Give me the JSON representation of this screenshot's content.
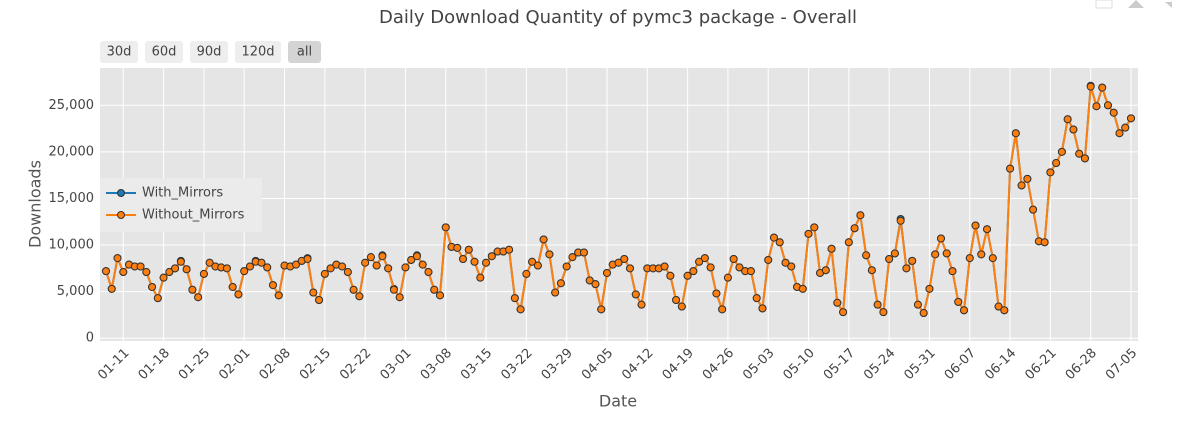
{
  "chart_data": {
    "type": "line",
    "title": "Daily Download Quantity of pymc3 package - Overall",
    "x_label": "Date",
    "y_label": "Downloads",
    "range_buttons": [
      "30d",
      "60d",
      "90d",
      "120d",
      "all"
    ],
    "categories": [
      "01-08",
      "01-09",
      "01-10",
      "01-11",
      "01-12",
      "01-13",
      "01-14",
      "01-15",
      "01-16",
      "01-17",
      "01-18",
      "01-19",
      "01-20",
      "01-21",
      "01-22",
      "01-23",
      "01-24",
      "01-25",
      "01-26",
      "01-27",
      "01-28",
      "01-29",
      "01-30",
      "01-31",
      "02-01",
      "02-02",
      "02-03",
      "02-04",
      "02-05",
      "02-06",
      "02-07",
      "02-08",
      "02-09",
      "02-10",
      "02-11",
      "02-12",
      "02-13",
      "02-14",
      "02-15",
      "02-16",
      "02-17",
      "02-18",
      "02-19",
      "02-20",
      "02-21",
      "02-22",
      "02-23",
      "02-24",
      "02-25",
      "02-26",
      "02-27",
      "02-28",
      "03-01",
      "03-02",
      "03-03",
      "03-04",
      "03-05",
      "03-06",
      "03-07",
      "03-08",
      "03-09",
      "03-10",
      "03-11",
      "03-12",
      "03-13",
      "03-14",
      "03-15",
      "03-16",
      "03-17",
      "03-18",
      "03-19",
      "03-20",
      "03-21",
      "03-22",
      "03-23",
      "03-24",
      "03-25",
      "03-26",
      "03-27",
      "03-28",
      "03-29",
      "03-30",
      "03-31",
      "04-01",
      "04-02",
      "04-03",
      "04-04",
      "04-05",
      "04-06",
      "04-07",
      "04-08",
      "04-09",
      "04-10",
      "04-11",
      "04-12",
      "04-13",
      "04-14",
      "04-15",
      "04-16",
      "04-17",
      "04-18",
      "04-19",
      "04-20",
      "04-21",
      "04-22",
      "04-23",
      "04-24",
      "04-25",
      "04-26",
      "04-27",
      "04-28",
      "04-29",
      "04-30",
      "05-01",
      "05-02",
      "05-03",
      "05-04",
      "05-05",
      "05-06",
      "05-07",
      "05-08",
      "05-09",
      "05-10",
      "05-11",
      "05-12",
      "05-13",
      "05-14",
      "05-15",
      "05-16",
      "05-17",
      "05-18",
      "05-19",
      "05-20",
      "05-21",
      "05-22",
      "05-23",
      "05-24",
      "05-25",
      "05-26",
      "05-27",
      "05-28",
      "05-29",
      "05-30",
      "05-31",
      "06-01",
      "06-02",
      "06-03",
      "06-04",
      "06-05",
      "06-06",
      "06-07",
      "06-08",
      "06-09",
      "06-10",
      "06-11",
      "06-12",
      "06-13",
      "06-14",
      "06-15",
      "06-16",
      "06-17",
      "06-18",
      "06-19",
      "06-20",
      "06-21",
      "06-22",
      "06-23",
      "06-24",
      "06-25",
      "06-26",
      "06-27",
      "06-28",
      "06-29",
      "06-30",
      "07-01",
      "07-02",
      "07-03",
      "07-04",
      "07-05"
    ],
    "xticks": [
      "01-11",
      "01-18",
      "01-25",
      "02-01",
      "02-08",
      "02-15",
      "02-22",
      "03-01",
      "03-08",
      "03-15",
      "03-22",
      "03-29",
      "04-05",
      "04-12",
      "04-19",
      "04-26",
      "05-03",
      "05-10",
      "05-17",
      "05-24",
      "05-31",
      "06-07",
      "06-14",
      "06-21",
      "06-28",
      "07-05"
    ],
    "ylim": [
      -300,
      29000
    ],
    "yticks": [
      0,
      {
        "value": 5000,
        "label": "5,000"
      },
      {
        "value": 10000,
        "label": "10,000"
      },
      {
        "value": 15000,
        "label": "15,000"
      },
      {
        "value": 20000,
        "label": "20,000"
      },
      {
        "value": 25000,
        "label": "25,000"
      }
    ],
    "grid": true,
    "legend_position": "left",
    "series": [
      {
        "name": "With_Mirrors",
        "color": "#1f77b4",
        "values": [
          7200,
          5300,
          8600,
          7100,
          7900,
          7700,
          7700,
          7100,
          5500,
          4300,
          6500,
          7100,
          7500,
          8300,
          7400,
          5200,
          4400,
          6900,
          8100,
          7700,
          7600,
          7500,
          5500,
          4700,
          7200,
          7700,
          8300,
          8100,
          7600,
          5700,
          4600,
          7800,
          7700,
          7900,
          8300,
          8600,
          4900,
          4100,
          6900,
          7500,
          7900,
          7700,
          7100,
          5200,
          4500,
          8100,
          8700,
          7800,
          8900,
          7500,
          5300,
          4400,
          7600,
          8400,
          8900,
          7900,
          7100,
          5200,
          4600,
          11900,
          9800,
          9700,
          8500,
          9500,
          8200,
          6500,
          8100,
          8800,
          9300,
          9300,
          9500,
          4300,
          3100,
          6900,
          8200,
          7800,
          10600,
          9000,
          4900,
          5900,
          7700,
          8700,
          9200,
          9200,
          6200,
          5800,
          3100,
          7000,
          7900,
          8100,
          8500,
          7500,
          4700,
          3600,
          7500,
          7500,
          7500,
          7700,
          6700,
          4100,
          3400,
          6700,
          7200,
          8200,
          8600,
          7600,
          4800,
          3100,
          6500,
          8500,
          7600,
          7200,
          7200,
          4300,
          3200,
          8400,
          10800,
          10300,
          8100,
          7700,
          5500,
          5300,
          11200,
          11900,
          7000,
          7300,
          9600,
          3800,
          2800,
          10300,
          11800,
          13200,
          8900,
          7300,
          3600,
          2800,
          8500,
          9100,
          12800,
          7500,
          8300,
          3600,
          2700,
          5300,
          9000,
          10700,
          9100,
          7200,
          3900,
          3000,
          8600,
          12100,
          9000,
          11700,
          8600,
          3400,
          3000,
          18200,
          22000,
          16400,
          17100,
          13800,
          10400,
          10300,
          17800,
          18800,
          20000,
          23500,
          22400,
          19800,
          19300,
          27100,
          24900,
          26900,
          25000,
          24200,
          22000,
          22600,
          23600
        ]
      },
      {
        "name": "Without_Mirrors",
        "color": "#ff7f0e",
        "values": [
          7200,
          5300,
          8600,
          7100,
          7900,
          7700,
          7700,
          7100,
          5500,
          4300,
          6500,
          7100,
          7500,
          8200,
          7400,
          5200,
          4400,
          6900,
          8100,
          7700,
          7600,
          7500,
          5500,
          4700,
          7200,
          7700,
          8200,
          8100,
          7600,
          5700,
          4600,
          7800,
          7700,
          7900,
          8300,
          8500,
          4900,
          4100,
          6900,
          7500,
          7900,
          7700,
          7100,
          5200,
          4500,
          8100,
          8700,
          7800,
          8800,
          7500,
          5200,
          4400,
          7600,
          8400,
          8800,
          7900,
          7100,
          5200,
          4600,
          11900,
          9800,
          9700,
          8500,
          9500,
          8200,
          6500,
          8100,
          8800,
          9300,
          9300,
          9500,
          4300,
          3100,
          6900,
          8200,
          7800,
          10600,
          9000,
          4900,
          5900,
          7700,
          8700,
          9200,
          9200,
          6200,
          5800,
          3100,
          7000,
          7900,
          8100,
          8500,
          7500,
          4700,
          3600,
          7500,
          7500,
          7500,
          7700,
          6700,
          4100,
          3400,
          6700,
          7200,
          8200,
          8600,
          7600,
          4800,
          3100,
          6500,
          8500,
          7600,
          7200,
          7200,
          4300,
          3200,
          8400,
          10800,
          10300,
          8100,
          7700,
          5500,
          5300,
          11200,
          11900,
          7000,
          7300,
          9600,
          3800,
          2800,
          10300,
          11800,
          13200,
          8900,
          7300,
          3600,
          2800,
          8500,
          9100,
          12600,
          7500,
          8300,
          3600,
          2700,
          5300,
          9000,
          10700,
          9100,
          7200,
          3900,
          3000,
          8600,
          12100,
          9000,
          11700,
          8600,
          3400,
          3000,
          18200,
          22000,
          16400,
          17100,
          13800,
          10400,
          10300,
          17800,
          18800,
          20000,
          23500,
          22400,
          19800,
          19300,
          27000,
          24900,
          26900,
          25000,
          24200,
          22000,
          22600,
          23600
        ]
      }
    ]
  }
}
